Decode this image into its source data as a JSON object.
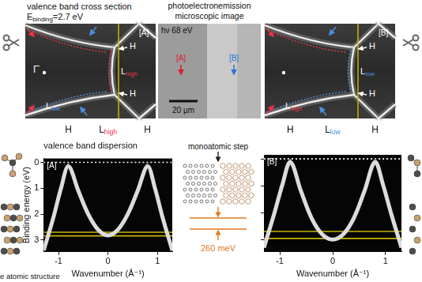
{
  "top_left": {
    "title": "valence band cross section",
    "energy": {
      "text": "E",
      "sub": "binding",
      "rest": "=2.7 eV"
    },
    "tag": "[A]",
    "gamma": "Γ̄",
    "labels": [
      {
        "text": "H"
      },
      {
        "text": "L",
        "sub": "high",
        "color": "#e8344a"
      },
      {
        "text": "H"
      },
      {
        "text": "L",
        "sub": "low",
        "color": "#4a90e2"
      }
    ]
  },
  "middle": {
    "title_lines": [
      "photoelectronemission",
      "microscopic image"
    ],
    "photon": "hν 68 eV",
    "markers": [
      {
        "text": "[A]",
        "color": "#d81e34"
      },
      {
        "text": "[B]",
        "color": "#2a78d0"
      }
    ],
    "scale_bar": "20 µm"
  },
  "top_right": {
    "tag": "[B]",
    "labels": [
      {
        "text": "H"
      },
      {
        "text": "L",
        "sub": "low",
        "color": "#4a90e2"
      },
      {
        "text": "H"
      },
      {
        "text": "L",
        "sub": "high",
        "color": "#e8344a"
      }
    ]
  },
  "center": {
    "step": "monoatomic step",
    "energy_difference": "260 meV"
  },
  "caption_fragment": "e atomic structure",
  "chart_data": [
    {
      "type": "line",
      "title": "valence band dispersion",
      "panel": "[A]",
      "x_label": "Wavenumber (Å⁻¹)",
      "y_label": "Binding energy (eV)",
      "xlim": [
        -1.3,
        1.3
      ],
      "xticks": [
        -1,
        0,
        1
      ],
      "ylim": [
        3.45,
        -0.15
      ],
      "yticks": [
        0,
        1,
        2,
        3
      ],
      "grid": false,
      "annotations": [
        {
          "x": -0.8,
          "text": "H"
        },
        {
          "x": 0,
          "text": "L",
          "sub": "high",
          "color": "#e8344a"
        },
        {
          "x": 0.8,
          "text": "H"
        }
      ],
      "series": [
        {
          "color": "#dcdcdc",
          "line_style": "solid",
          "x": [
            -1.3,
            -1.1,
            -0.95,
            -0.8,
            -0.6,
            -0.4,
            -0.2,
            0,
            0.2,
            0.4,
            0.6,
            0.8,
            0.95,
            1.1,
            1.3
          ],
          "values": [
            3.4,
            2.1,
            1.0,
            0.15,
            1.1,
            2.0,
            2.6,
            2.82,
            2.6,
            2.0,
            1.1,
            0.15,
            1.0,
            2.1,
            3.4
          ]
        },
        {
          "color": "#e8344a",
          "line_style": "dotted",
          "x": [
            -0.8,
            -0.6,
            -0.4,
            -0.2,
            0,
            0.2,
            0.4,
            0.6,
            0.8
          ],
          "values": [
            0,
            1.05,
            1.95,
            2.55,
            2.78,
            2.55,
            1.95,
            1.05,
            0
          ]
        },
        {
          "color": "#4a90e2",
          "line_style": "dotted",
          "x": [
            -1.3,
            -0.8,
            0,
            0.8,
            1.3
          ],
          "values": [
            3.3,
            0,
            null,
            0,
            3.3
          ]
        },
        {
          "color": "#c8b400",
          "line_style": "solid",
          "x": [
            -1.3,
            1.3
          ],
          "values": [
            2.7,
            2.7
          ]
        },
        {
          "color": "#c8b400",
          "line_style": "solid",
          "x": [
            -1.3,
            1.3
          ],
          "values": [
            2.84,
            2.84
          ]
        },
        {
          "color": "#ffffff",
          "line_style": "dotted",
          "x": [
            -1.3,
            1.3
          ],
          "values": [
            0,
            0
          ]
        }
      ]
    },
    {
      "type": "line",
      "panel": "[B]",
      "x_label": "Wavenumber (Å⁻¹)",
      "xlim": [
        -1.3,
        1.3
      ],
      "xticks": [
        -1,
        0,
        1
      ],
      "ylim": [
        3.45,
        -0.15
      ],
      "yticks": [
        0,
        1,
        2,
        3
      ],
      "grid": false,
      "tick_labels": "x",
      "annotations": [
        {
          "x": -0.8,
          "text": "H"
        },
        {
          "x": 0,
          "text": "L",
          "sub": "low",
          "color": "#4a90e2"
        },
        {
          "x": 0.8,
          "text": "H"
        }
      ],
      "series": [
        {
          "color": "#dcdcdc",
          "line_style": "solid",
          "x": [
            -1.3,
            -1.1,
            -0.95,
            -0.8,
            -0.6,
            -0.4,
            -0.2,
            0,
            0.2,
            0.4,
            0.6,
            0.8,
            0.95,
            1.1,
            1.3
          ],
          "values": [
            3.3,
            2.0,
            0.95,
            0.12,
            1.2,
            2.2,
            2.8,
            3.0,
            2.8,
            2.2,
            1.2,
            0.12,
            0.95,
            2.0,
            3.3
          ]
        },
        {
          "color": "#e8344a",
          "line_style": "dotted",
          "x": [
            -1.3,
            -0.8,
            0,
            0.8,
            1.3
          ],
          "values": [
            3.3,
            0,
            null,
            0,
            3.3
          ]
        },
        {
          "color": "#4a90e2",
          "line_style": "dotted",
          "x": [
            -0.8,
            -0.6,
            -0.4,
            -0.2,
            0,
            0.2,
            0.4,
            0.6,
            0.8
          ],
          "values": [
            0,
            1.15,
            2.15,
            2.78,
            2.98,
            2.78,
            2.15,
            1.15,
            0
          ]
        },
        {
          "color": "#c8b400",
          "line_style": "solid",
          "x": [
            -1.3,
            1.3
          ],
          "values": [
            2.7,
            2.7
          ]
        },
        {
          "color": "#c8b400",
          "line_style": "solid",
          "x": [
            -1.3,
            1.3
          ],
          "values": [
            2.96,
            2.96
          ]
        },
        {
          "color": "#ffffff",
          "line_style": "dotted",
          "x": [
            -1.3,
            1.3
          ],
          "values": [
            0,
            0
          ]
        }
      ]
    }
  ]
}
